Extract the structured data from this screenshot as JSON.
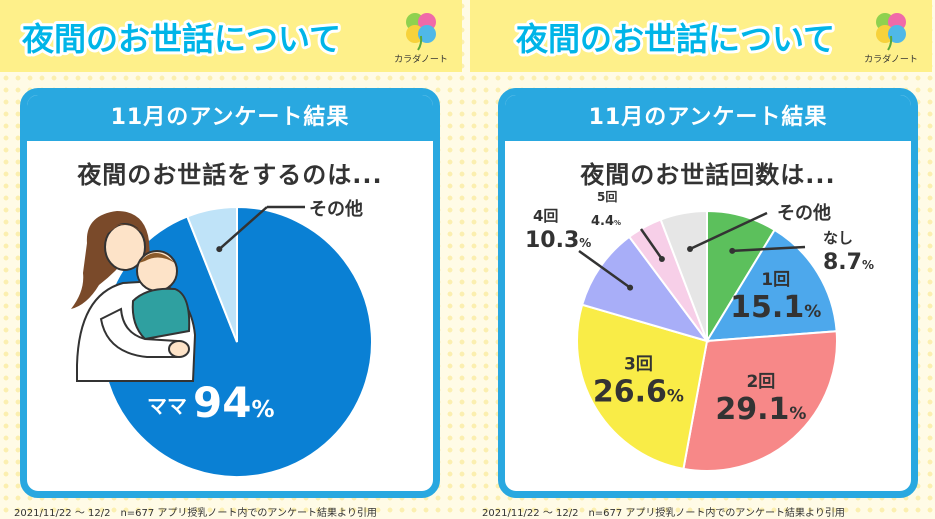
{
  "page": {
    "background": "#fffbe6",
    "accent": "#29a8e0",
    "banner_color": "#fef08a",
    "title_fill": "#00b5e8"
  },
  "left": {
    "title": "夜間のお世話について",
    "logo_text": "カラダノート",
    "header": "11月のアンケート結果",
    "subtitle": "夜間のお世話をするのは...",
    "footnote": "2021/11/22 〜 12/2　n=677 アプリ授乳ノート内でのアンケート結果より引用"
  },
  "right": {
    "title": "夜間のお世話について",
    "logo_text": "カラダノート",
    "header": "11月のアンケート結果",
    "subtitle": "夜間のお世話回数は...",
    "footnote": "2021/11/22 〜 12/2　n=677 アプリ授乳ノート内でのアンケート結果より引用"
  },
  "chart_data": [
    {
      "type": "pie",
      "title": "夜間のお世話をするのは...",
      "unit": "%",
      "slices": [
        {
          "label": "ママ",
          "value": 94,
          "display": "94",
          "color": "#0a80d4"
        },
        {
          "label": "その他",
          "value": 6,
          "display": "",
          "color": "#bfe3f8"
        }
      ]
    },
    {
      "type": "pie",
      "title": "夜間のお世話回数は...",
      "unit": "%",
      "slices": [
        {
          "label": "なし",
          "value": 8.7,
          "display": "8.7",
          "color": "#5cc05c"
        },
        {
          "label": "1回",
          "value": 15.1,
          "display": "15.1",
          "color": "#4da8ec"
        },
        {
          "label": "2回",
          "value": 29.1,
          "display": "29.1",
          "color": "#f78888"
        },
        {
          "label": "3回",
          "value": 26.6,
          "display": "26.6",
          "color": "#f9ec47"
        },
        {
          "label": "4回",
          "value": 10.3,
          "display": "10.3",
          "color": "#a8aef8"
        },
        {
          "label": "5回",
          "value": 4.4,
          "display": "4.4",
          "color": "#f7cfe8"
        },
        {
          "label": "その他",
          "value": 5.8,
          "display": "",
          "color": "#e6e6e6"
        }
      ]
    }
  ]
}
